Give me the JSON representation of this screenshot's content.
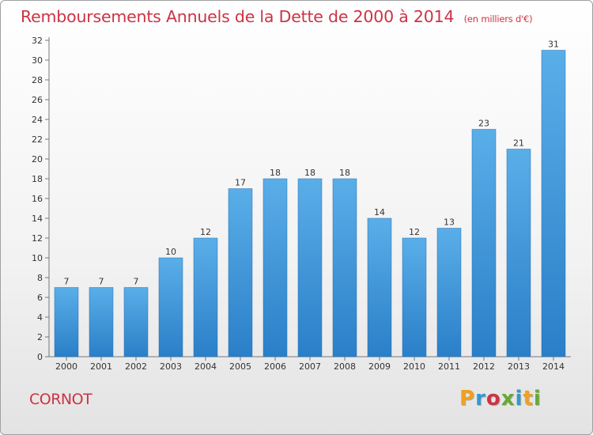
{
  "header": {
    "title": "Remboursements Annuels de la Dette de 2000 à 2014",
    "unit": "(en milliers d'€)"
  },
  "commune": "CORNOT",
  "logo": {
    "text": "Proxiti",
    "letters": [
      {
        "ch": "P",
        "color": "#f0a020"
      },
      {
        "ch": "r",
        "color": "#3399cc"
      },
      {
        "ch": "o",
        "color": "#cc3344"
      },
      {
        "ch": "x",
        "color": "#66aa33"
      },
      {
        "ch": "i",
        "color": "#3399cc"
      },
      {
        "ch": "t",
        "color": "#f0a020"
      },
      {
        "ch": "i",
        "color": "#66aa33"
      }
    ]
  },
  "colors": {
    "bar_top": "#5aaee8",
    "bar_bottom": "#2a7fc8",
    "title": "#cc3344"
  },
  "chart_data": {
    "type": "bar",
    "title": "Remboursements Annuels de la Dette de 2000 à 2014",
    "subtitle": "(en milliers d'€)",
    "categories": [
      "2000",
      "2001",
      "2002",
      "2003",
      "2004",
      "2005",
      "2006",
      "2007",
      "2008",
      "2009",
      "2010",
      "2011",
      "2012",
      "2013",
      "2014"
    ],
    "values": [
      7,
      7,
      7,
      10,
      12,
      17,
      18,
      18,
      18,
      14,
      12,
      13,
      23,
      21,
      31
    ],
    "ylim": [
      0,
      32
    ],
    "yticks": [
      0,
      2,
      4,
      6,
      8,
      10,
      12,
      14,
      16,
      18,
      20,
      22,
      24,
      26,
      28,
      30,
      32
    ],
    "grid": false,
    "legend": "none"
  }
}
